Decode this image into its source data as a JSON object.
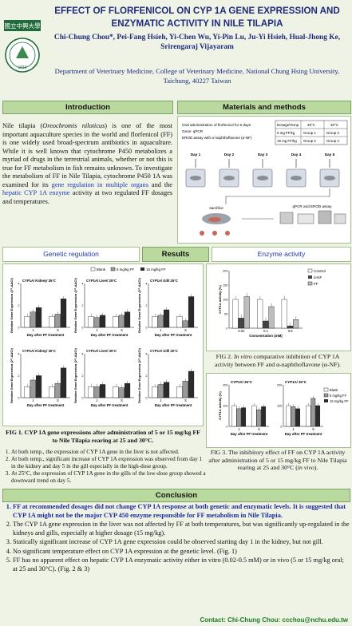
{
  "header": {
    "title": "EFFECT OF FLORFENICOL ON CYP 1A GENE EXPRESSION AND ENZYMATIC ACTIVITY IN NILE TILAPIA",
    "authors": "Chi-Chung Chou*, Pei-Fang Hsieh, Yi-Chen Wu, Yi-Pin Lu, Ju-Yi Hsieh, Hual-Jhong Ke, Srirengaraj Vijayaram",
    "affiliation": "Department of Veterinary Medicine, College of Veterinary Medicine, National Chung Hsing University, Taichung, 40227 Taiwan",
    "logo_text": "國立中興大學",
    "logo_year": "1919"
  },
  "intro": {
    "heading": "Introduction",
    "p1": "Nile tilapia (",
    "species": "Oreochromis niloticus",
    "p2": ") is one of the most important aquaculture species in the world and florfenicol (FF) is one widely used broad-spectrum antibiotics in aquaculture. While it is well known that cytochrome P450 metabolizes a myriad of drugs in the terrestrial animals, whether or not this is true for FF metabolism in fish remains unknown. To investigate the metabolism of FF in Nile Tilapia, cytochrome P450 1A was examined for its ",
    "link1": "gene regulation in multiple organs",
    "p3": " and the ",
    "link2": "hepatic CYP 1A enzyme",
    "p4": " activity at two regulated FF dosages and temperatures."
  },
  "methods": {
    "heading": "Materials and methods",
    "desc_lines": [
      "Oral administration of florfenicol for 5 days",
      "Gene: qPCR",
      "EROD assay with α-naphthoflavone (α-NF)"
    ],
    "table": {
      "headers": [
        "Dosage\\Temp",
        "25°C",
        "30°C"
      ],
      "rows": [
        [
          "5 mg FF/kg",
          "Group 1",
          "Group 3"
        ],
        [
          "15 mg FF/kg",
          "Group 2",
          "Group 4"
        ]
      ]
    },
    "days": [
      "Day 1",
      "Day 2",
      "Day 3",
      "Day 4",
      "Day 5"
    ],
    "sacrifice": "sacrifice",
    "assay": "qPCR and EROD assay"
  },
  "results": {
    "heading": "Results",
    "gene_heading": "Genetic regulation",
    "enzyme_heading": "Enzyme activity",
    "gene_legend": [
      "Blank",
      "5 mg/kg FF",
      "15 mg/kg FF"
    ],
    "gene_panels": [
      "CYP1A/ Kidney/ 25°C",
      "CYP1A/ Liver/ 25°C",
      "CYP1A/ Gill/ 25°C",
      "CYP1A/ Kidney/ 30°C",
      "CYP1A/ Liver/ 30°C",
      "CYP1A/ Gill/ 30°C"
    ],
    "gene_ylabel": "Relative Gene Expression (2^-ΔΔCt)",
    "gene_xlabel": "Day after FF treatment",
    "fig1_caption": "FIG 1. CYP 1A gene expressions after administration of 5 or 15 mg/kg FF to Nile Tilapia rearing at 25 and 30°C.",
    "fig1_notes": [
      "At both temp., the expression of CYP 1A gene in the liver is not affected.",
      "At both temp., significant increase of CYP 1A expression was observed from day 1 in the kidney and day 5 in the gill especially in the high-dose group.",
      "At 25°C, the expression of CYP 1A gene in the gills of the low-dose group showed a downward trend on day 5."
    ],
    "fig2_legend": [
      "Control",
      "α-NF",
      "FF"
    ],
    "fig2_caption_a": "FIG 2. ",
    "fig2_caption_i": "In vitro",
    "fig2_caption_b": " comparative inhibition of CYP 1A activity between FF and α-naphthoflavone (α-NF).",
    "fig3_caption_a": "FIG 3. The inhibitory effect of FF on CYP 1A activity after administration of 5 or 15 mg/kg FF to Nile Tilapia rearing at 25 and 30°C (",
    "fig3_caption_i": "in vivo",
    "fig3_caption_b": ").",
    "fig3_panels": [
      "CYP1A/ 25°C",
      "CYP1A/ 30°C"
    ],
    "fig3_legend": [
      "Blank",
      "5 mg/kg FF",
      "15 mg/kg FF"
    ],
    "fig3_ylabel": "CYP1A activity (%)",
    "fig3_xlabel": "Day after FF treatment"
  },
  "chart_data": [
    {
      "type": "bar",
      "title": "CYP1A/ Kidney/ 25°C",
      "categories": [
        "1",
        "5"
      ],
      "series": [
        {
          "name": "Blank",
          "values": [
            1.0,
            1.0
          ]
        },
        {
          "name": "5 mg/kg FF",
          "values": [
            1.4,
            1.2
          ]
        },
        {
          "name": "15 mg/kg FF",
          "values": [
            1.8,
            2.6
          ]
        }
      ],
      "xlabel": "Day after FF treatment",
      "ylabel": "Relative Gene Expression (2^-ΔΔCt)",
      "ylim": [
        0,
        4
      ]
    },
    {
      "type": "bar",
      "title": "CYP1A/ Liver/ 25°C",
      "categories": [
        "1",
        "5"
      ],
      "series": [
        {
          "name": "Blank",
          "values": [
            1.0,
            1.0
          ]
        },
        {
          "name": "5 mg/kg FF",
          "values": [
            0.9,
            1.1
          ]
        },
        {
          "name": "15 mg/kg FF",
          "values": [
            1.1,
            1.4
          ]
        }
      ],
      "xlabel": "Day after FF treatment",
      "ylabel": "Relative Gene Expression (2^-ΔΔCt)",
      "ylim": [
        0,
        4
      ]
    },
    {
      "type": "bar",
      "title": "CYP1A/ Gill/ 25°C",
      "categories": [
        "1",
        "5"
      ],
      "series": [
        {
          "name": "Blank",
          "values": [
            1.0,
            1.0
          ]
        },
        {
          "name": "5 mg/kg FF",
          "values": [
            1.1,
            0.6
          ]
        },
        {
          "name": "15 mg/kg FF",
          "values": [
            1.6,
            2.8
          ]
        }
      ],
      "xlabel": "Day after FF treatment",
      "ylabel": "Relative Gene Expression (2^-ΔΔCt)",
      "ylim": [
        0,
        4
      ]
    },
    {
      "type": "bar",
      "title": "CYP1A/ Kidney/ 30°C",
      "categories": [
        "1",
        "5"
      ],
      "series": [
        {
          "name": "Blank",
          "values": [
            1.0,
            1.0
          ]
        },
        {
          "name": "5 mg/kg FF",
          "values": [
            1.6,
            1.3
          ]
        },
        {
          "name": "15 mg/kg FF",
          "values": [
            2.0,
            2.7
          ]
        }
      ],
      "xlabel": "Day after FF treatment",
      "ylabel": "Relative Gene Expression (2^-ΔΔCt)",
      "ylim": [
        0,
        4
      ]
    },
    {
      "type": "bar",
      "title": "CYP1A/ Liver/ 30°C",
      "categories": [
        "1",
        "5"
      ],
      "series": [
        {
          "name": "Blank",
          "values": [
            1.0,
            1.0
          ]
        },
        {
          "name": "5 mg/kg FF",
          "values": [
            1.0,
            0.9
          ]
        },
        {
          "name": "15 mg/kg FF",
          "values": [
            1.2,
            1.3
          ]
        }
      ],
      "xlabel": "Day after FF treatment",
      "ylabel": "Relative Gene Expression (2^-ΔΔCt)",
      "ylim": [
        0,
        4
      ]
    },
    {
      "type": "bar",
      "title": "CYP1A/ Gill/ 30°C",
      "categories": [
        "1",
        "5"
      ],
      "series": [
        {
          "name": "Blank",
          "values": [
            1.0,
            1.0
          ]
        },
        {
          "name": "5 mg/kg FF",
          "values": [
            1.2,
            1.5
          ]
        },
        {
          "name": "15 mg/kg FF",
          "values": [
            1.4,
            2.4
          ]
        }
      ],
      "xlabel": "Day after FF treatment",
      "ylabel": "Relative Gene Expression (2^-ΔΔCt)",
      "ylim": [
        0,
        4
      ]
    },
    {
      "type": "bar",
      "title": "",
      "categories": [
        "0.02",
        "0.1",
        "0.5"
      ],
      "series": [
        {
          "name": "Control",
          "values": [
            100,
            100,
            100
          ]
        },
        {
          "name": "α-NF",
          "values": [
            35,
            25,
            8
          ]
        },
        {
          "name": "FF",
          "values": [
            110,
            75,
            30
          ]
        }
      ],
      "xlabel": "Concentration (mM)",
      "ylabel": "CYP1A activity (%)",
      "ylim": [
        0,
        200
      ]
    },
    {
      "type": "bar",
      "title": "CYP1A/ 25°C",
      "categories": [
        "1",
        "5"
      ],
      "series": [
        {
          "name": "Blank",
          "values": [
            100,
            100
          ]
        },
        {
          "name": "5 mg/kg FF",
          "values": [
            85,
            80
          ]
        },
        {
          "name": "15 mg/kg FF",
          "values": [
            90,
            95
          ]
        }
      ],
      "xlabel": "Day after FF treatment",
      "ylabel": "CYP1A activity (%)",
      "ylim": [
        0,
        200
      ]
    },
    {
      "type": "bar",
      "title": "CYP1A/ 30°C",
      "categories": [
        "1",
        "5"
      ],
      "series": [
        {
          "name": "Blank",
          "values": [
            100,
            100
          ]
        },
        {
          "name": "5 mg/kg FF",
          "values": [
            95,
            135
          ]
        },
        {
          "name": "15 mg/kg FF",
          "values": [
            85,
            100
          ]
        }
      ],
      "xlabel": "Day after FF treatment",
      "ylabel": "CYP1A activity (%)",
      "ylim": [
        0,
        200
      ]
    }
  ],
  "conclusion": {
    "heading": "Conclusion",
    "items": [
      "FF at recommended dosages did not change CYP 1A response at both genetic and enzymatic levels. It is suggested that CYP 1A might not be the major CYP 450 enzyme responsible for FF metabolism in Nile Tilapia.",
      "The CYP 1A gene expression in the liver was not affected by FF at both temperatures, but was significantly up-regulated in the kidneys and gills, especially at higher dosage (15 mg/kg).",
      "Statically significant increase of CYP 1A gene expression could be observed starting day 1 in the kidney, but not gill.",
      "No significant temperature effect on CYP 1A expression at the genetic level. (Fig. 1)",
      "FF has no apparent effect on hepatic CYP 1A enzymatic activity either in vitro (0.02-0.5 mM) or in vivo (5 or 15 mg/kg oral; at 25 and 30°C). (Fig. 2 & 3)"
    ],
    "contact": "Contact: Chi-Chung Chou: ccchou@nchu.edu.tw"
  },
  "colors": {
    "accent": "#1f2a7a",
    "header_bg": "#b9d99f",
    "blank": "#ffffff",
    "low": "#9a9a9a",
    "high": "#2b2b2b",
    "link": "#1f3ab0"
  }
}
